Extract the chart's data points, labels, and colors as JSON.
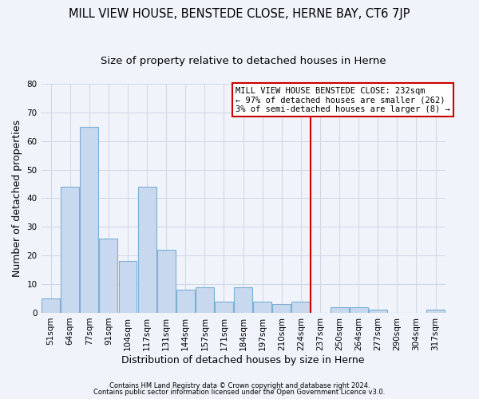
{
  "title": "MILL VIEW HOUSE, BENSTEDE CLOSE, HERNE BAY, CT6 7JP",
  "subtitle": "Size of property relative to detached houses in Herne",
  "xlabel": "Distribution of detached houses by size in Herne",
  "ylabel": "Number of detached properties",
  "bar_color": "#c8d8ee",
  "bar_edge_color": "#7bafd4",
  "categories": [
    "51sqm",
    "64sqm",
    "77sqm",
    "91sqm",
    "104sqm",
    "117sqm",
    "131sqm",
    "144sqm",
    "157sqm",
    "171sqm",
    "184sqm",
    "197sqm",
    "210sqm",
    "224sqm",
    "237sqm",
    "250sqm",
    "264sqm",
    "277sqm",
    "290sqm",
    "304sqm",
    "317sqm"
  ],
  "values": [
    5,
    44,
    65,
    26,
    18,
    44,
    22,
    8,
    9,
    4,
    9,
    4,
    3,
    4,
    0,
    2,
    2,
    1,
    0,
    0,
    1
  ],
  "vline_x": 14.0,
  "vline_color": "#cc0000",
  "ylim": [
    0,
    80
  ],
  "yticks": [
    0,
    10,
    20,
    30,
    40,
    50,
    60,
    70,
    80
  ],
  "annotation_title": "MILL VIEW HOUSE BENSTEDE CLOSE: 232sqm",
  "annotation_line1": "← 97% of detached houses are smaller (262)",
  "annotation_line2": "3% of semi-detached houses are larger (8) →",
  "footer1": "Contains HM Land Registry data © Crown copyright and database right 2024.",
  "footer2": "Contains public sector information licensed under the Open Government Licence v3.0.",
  "bg_color": "#f0f4fa",
  "plot_bg_color": "#f0f4fa",
  "grid_color": "#d0d8e8",
  "title_fontsize": 10.5,
  "subtitle_fontsize": 9.5,
  "axis_label_fontsize": 9,
  "tick_fontsize": 7.5,
  "annotation_fontsize": 7.5
}
